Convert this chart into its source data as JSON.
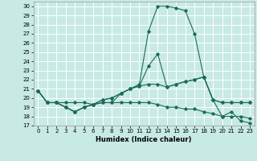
{
  "title": "",
  "xlabel": "Humidex (Indice chaleur)",
  "bg_color": "#c8eae4",
  "grid_color": "#ffffff",
  "line_color": "#1a6b5e",
  "xlim": [
    -0.5,
    23.5
  ],
  "ylim": [
    17,
    30.5
  ],
  "yticks": [
    17,
    18,
    19,
    20,
    21,
    22,
    23,
    24,
    25,
    26,
    27,
    28,
    29,
    30
  ],
  "xticks": [
    0,
    1,
    2,
    3,
    4,
    5,
    6,
    7,
    8,
    9,
    10,
    11,
    12,
    13,
    14,
    15,
    16,
    17,
    18,
    19,
    20,
    21,
    22,
    23
  ],
  "series": [
    [
      20.8,
      19.5,
      19.5,
      19.0,
      18.5,
      19.0,
      19.3,
      19.5,
      19.5,
      20.5,
      21.0,
      21.5,
      27.3,
      30.0,
      30.0,
      29.8,
      29.5,
      27.0,
      22.3,
      19.8,
      18.0,
      18.5,
      17.5,
      17.3
    ],
    [
      20.8,
      19.5,
      19.5,
      19.0,
      18.5,
      19.0,
      19.3,
      19.8,
      20.0,
      20.5,
      21.0,
      21.3,
      23.5,
      24.8,
      21.2,
      21.5,
      21.8,
      22.0,
      22.3,
      19.8,
      19.5,
      19.5,
      19.5,
      19.5
    ],
    [
      20.8,
      19.5,
      19.5,
      19.0,
      18.5,
      19.0,
      19.3,
      19.8,
      20.0,
      20.5,
      21.0,
      21.3,
      21.5,
      21.5,
      21.2,
      21.5,
      21.8,
      22.0,
      22.3,
      19.8,
      19.5,
      19.5,
      19.5,
      19.5
    ],
    [
      20.8,
      19.5,
      19.5,
      19.5,
      19.5,
      19.5,
      19.3,
      19.5,
      19.5,
      19.5,
      19.5,
      19.5,
      19.5,
      19.3,
      19.0,
      19.0,
      18.8,
      18.8,
      18.5,
      18.3,
      18.0,
      18.0,
      18.0,
      17.8
    ]
  ],
  "xlabel_fontsize": 6.0,
  "tick_fontsize": 5.0,
  "lw": 0.8,
  "marker_size": 1.8
}
